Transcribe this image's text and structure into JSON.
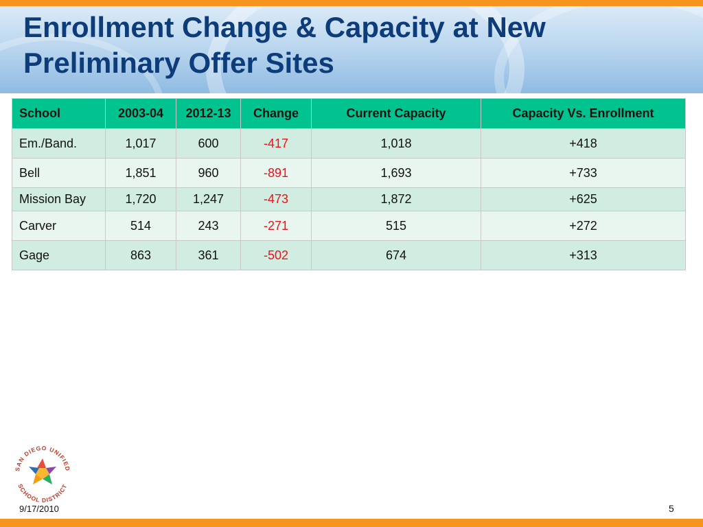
{
  "slide": {
    "title_line1": "Enrollment Change & Capacity at New",
    "title_line2": "Preliminary Offer Sites",
    "date": "9/17/2010",
    "page_number": "5"
  },
  "table": {
    "headers": [
      "School",
      "2003-04",
      "2012-13",
      "Change",
      "Current Capacity",
      "Capacity Vs. Enrollment"
    ],
    "rows": [
      [
        "Em./Band.",
        "1,017",
        "600",
        "-417",
        "1,018",
        "+418"
      ],
      [
        "Bell",
        "1,851",
        "960",
        "-891",
        "1,693",
        "+733"
      ],
      [
        "Mission Bay",
        "1,720",
        "1,247",
        "-473",
        "1,872",
        "+625"
      ],
      [
        "Carver",
        "514",
        "243",
        "-271",
        "515",
        "+272"
      ],
      [
        "Gage",
        "863",
        "361",
        "-502",
        "674",
        "+313"
      ]
    ]
  },
  "logo": {
    "text_top": "SAN DIEGO UNIFIED",
    "text_bottom": "SCHOOL DISTRICT"
  },
  "colors": {
    "accent_orange": "#f7941d",
    "title_blue": "#0d3c7a",
    "header_green": "#00c38f",
    "row_odd": "#d1ede1",
    "row_even": "#e9f6f0",
    "negative_red": "#e8141a"
  }
}
